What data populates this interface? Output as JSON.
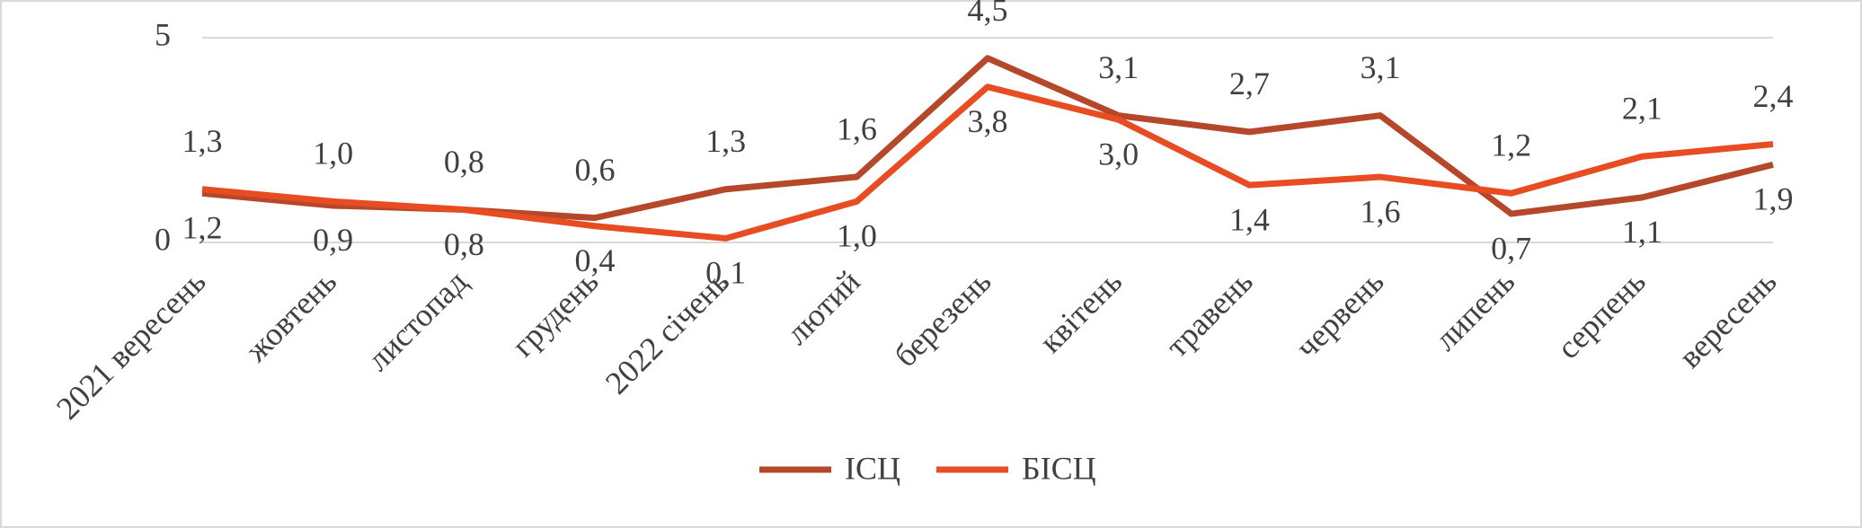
{
  "chart_data": {
    "type": "line",
    "categories": [
      "2021 вересень",
      "жовтень",
      "листопад",
      "грудень",
      "2022 січень",
      "лютий",
      "березень",
      "квітень",
      "травень",
      "червень",
      "липень",
      "серпень",
      "вересень"
    ],
    "series": [
      {
        "name": "ІСЦ",
        "color": "#b5482a",
        "values": [
          1.2,
          0.9,
          0.8,
          0.6,
          1.3,
          1.6,
          4.5,
          3.1,
          2.7,
          3.1,
          0.7,
          1.1,
          1.9
        ],
        "value_labels": [
          "1,2",
          "0,9",
          "0,8",
          "0,6",
          "1,3",
          "1,6",
          "4,5",
          "3,1",
          "2,7",
          "3,1",
          "0,7",
          "1,1",
          "1,9"
        ]
      },
      {
        "name": "БІСЦ",
        "color": "#e84c22",
        "values": [
          1.3,
          1.0,
          0.8,
          0.4,
          0.1,
          1.0,
          3.8,
          3.0,
          1.4,
          1.6,
          1.2,
          2.1,
          2.4
        ],
        "value_labels": [
          "1,3",
          "1,0",
          "0,8",
          "0,4",
          "0,1",
          "1,0",
          "3,8",
          "3,0",
          "1,4",
          "1,6",
          "1,2",
          "2,1",
          "2,4"
        ]
      }
    ],
    "ylim": [
      0,
      5
    ],
    "yticks": [
      0,
      5
    ],
    "grid": true,
    "legend": "bottom"
  }
}
